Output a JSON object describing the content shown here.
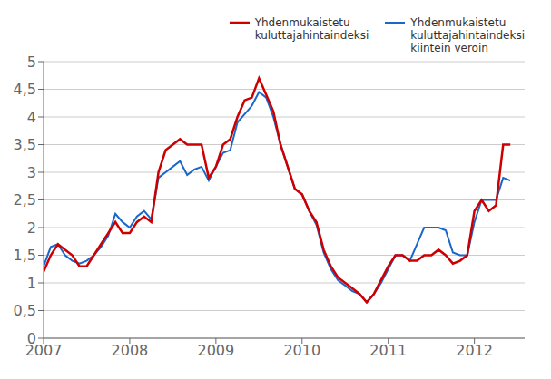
{
  "chart_data": {
    "type": "line",
    "x": [
      2007,
      2007.0833333333,
      2007.1666666667,
      2007.25,
      2007.3333333333,
      2007.4166666667,
      2007.5,
      2007.5833333333,
      2007.6666666667,
      2007.75,
      2007.8333333333,
      2007.9166666667,
      2008,
      2008.0833333333,
      2008.1666666667,
      2008.25,
      2008.3333333333,
      2008.4166666667,
      2008.5,
      2008.5833333333,
      2008.6666666667,
      2008.75,
      2008.8333333333,
      2008.9166666667,
      2009,
      2009.0833333333,
      2009.1666666667,
      2009.25,
      2009.3333333333,
      2009.4166666667,
      2009.5,
      2009.5833333333,
      2009.6666666667,
      2009.75,
      2009.8333333333,
      2009.9166666667,
      2010,
      2010.0833333333,
      2010.1666666667,
      2010.25,
      2010.3333333333,
      2010.4166666667,
      2010.5,
      2010.5833333333,
      2010.6666666667,
      2010.75,
      2010.8333333333,
      2010.9166666667,
      2011,
      2011.0833333333,
      2011.1666666667,
      2011.25,
      2011.3333333333,
      2011.4166666667,
      2011.5,
      2011.5833333333,
      2011.6666666667,
      2011.75,
      2011.8333333333,
      2011.9166666667,
      2012,
      2012.0833333333,
      2012.1666666667,
      2012.25,
      2012.3333333333,
      2012.4166666667
    ],
    "series": [
      {
        "name": "Yhdenmukaistetu\nkuluttajahintaindeksi",
        "color": "#cc0000",
        "values": [
          1.2,
          1.5,
          1.7,
          1.6,
          1.5,
          1.3,
          1.3,
          1.5,
          1.7,
          1.9,
          2.1,
          1.9,
          1.9,
          2.1,
          2.2,
          2.1,
          3.0,
          3.4,
          3.5,
          3.6,
          3.5,
          3.5,
          3.5,
          2.9,
          3.1,
          3.5,
          3.6,
          4.0,
          4.3,
          4.35,
          4.7,
          4.4,
          4.1,
          3.5,
          3.1,
          2.7,
          2.6,
          2.3,
          2.1,
          1.6,
          1.3,
          1.1,
          1.0,
          0.9,
          0.8,
          0.65,
          0.8,
          1.05,
          1.3,
          1.5,
          1.5,
          1.4,
          1.4,
          1.5,
          1.5,
          1.6,
          1.5,
          1.35,
          1.4,
          1.5,
          2.3,
          2.5,
          2.3,
          2.4,
          3.5,
          3.5
        ]
      },
      {
        "name": "Yhdenmukaistetu\nkuluttajahintaindeksi\nkiintein veroin",
        "color": "#1a66cc",
        "values": [
          1.3,
          1.65,
          1.7,
          1.5,
          1.4,
          1.35,
          1.4,
          1.5,
          1.65,
          1.85,
          2.25,
          2.1,
          2.0,
          2.2,
          2.3,
          2.15,
          2.9,
          3.0,
          3.1,
          3.2,
          2.95,
          3.05,
          3.1,
          2.85,
          3.1,
          3.35,
          3.4,
          3.9,
          4.05,
          4.2,
          4.45,
          4.35,
          4.0,
          3.5,
          3.1,
          2.7,
          2.6,
          2.3,
          2.05,
          1.55,
          1.25,
          1.05,
          0.95,
          0.85,
          0.8,
          0.65,
          0.8,
          1.0,
          1.25,
          1.5,
          1.5,
          1.4,
          1.7,
          2.0,
          2.0,
          2.0,
          1.95,
          1.55,
          1.5,
          1.5,
          2.1,
          2.5,
          2.5,
          2.5,
          2.9,
          2.85
        ]
      }
    ],
    "xlim": [
      2007.0,
      2012.583
    ],
    "xticks": [
      2007,
      2008,
      2009,
      2010,
      2011,
      2012
    ],
    "ylim": [
      0,
      5
    ],
    "yticks": [
      0,
      {
        "value": 0.5,
        "label": "0,5"
      },
      1,
      {
        "value": 1.5,
        "label": "1,5"
      },
      2,
      {
        "value": 2.5,
        "label": "2,5"
      },
      3,
      {
        "value": 3.5,
        "label": "3,5"
      },
      4,
      {
        "value": 4.5,
        "label": "4,5"
      },
      5
    ],
    "grid": "y",
    "legend": "upper right"
  }
}
